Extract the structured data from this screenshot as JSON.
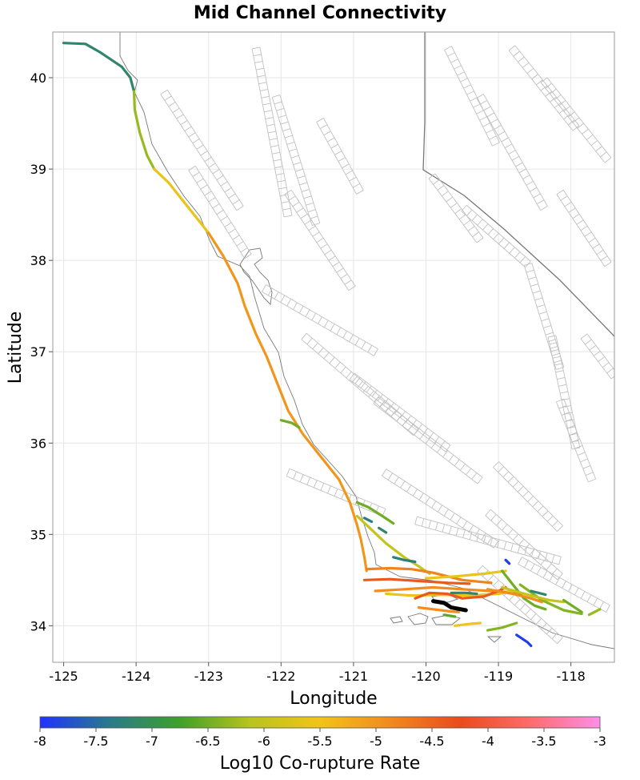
{
  "title": "Mid Channel Connectivity",
  "xlabel": "Longitude",
  "ylabel": "Latitude",
  "colorbar_label": "Log10 Co-rupture Rate",
  "x_ticks": [
    "-125",
    "-124",
    "-123",
    "-122",
    "-121",
    "-120",
    "-119",
    "-118"
  ],
  "y_ticks": [
    "34",
    "35",
    "36",
    "37",
    "38",
    "39",
    "40"
  ],
  "colorbar_ticks": [
    "-8",
    "-7.5",
    "-7",
    "-6.5",
    "-6",
    "-5.5",
    "-5",
    "-4.5",
    "-4",
    "-3.5",
    "-3"
  ],
  "colors": {
    "scale": [
      "#1f33ff",
      "#2a7a8a",
      "#3fa02a",
      "#b8c41c",
      "#f2c418",
      "#f28a1c",
      "#ea4a1c",
      "#ff6b6b",
      "#ff8ee8"
    ],
    "grid": "#e6e6e6",
    "fault_outline": "#c0c0c0",
    "coast": "#777777",
    "target_section": "#000000"
  },
  "chart_data": {
    "type": "map",
    "xlim": [
      -125.15,
      -117.4
    ],
    "ylim": [
      33.6,
      40.5
    ],
    "colorbar_range": [
      -8,
      -3
    ],
    "target_section": [
      [
        -119.9,
        34.27
      ],
      [
        -119.75,
        34.25
      ],
      [
        -119.65,
        34.2
      ],
      [
        -119.45,
        34.17
      ]
    ],
    "ruptures": [
      {
        "name": "north-coast-bluegreen",
        "rate": -7.2,
        "points": [
          [
            -125.0,
            40.38
          ],
          [
            -124.7,
            40.37
          ],
          [
            -124.5,
            40.28
          ],
          [
            -124.2,
            40.12
          ],
          [
            -124.08,
            40.0
          ],
          [
            -124.03,
            39.85
          ]
        ]
      },
      {
        "name": "north-coast-green",
        "rate": -6.3,
        "points": [
          [
            -124.03,
            39.85
          ],
          [
            -124.02,
            39.65
          ],
          [
            -123.95,
            39.4
          ],
          [
            -123.85,
            39.15
          ],
          [
            -123.75,
            39.0
          ]
        ]
      },
      {
        "name": "north-coast-yellow",
        "rate": -5.6,
        "points": [
          [
            -123.75,
            39.0
          ],
          [
            -123.55,
            38.85
          ],
          [
            -123.35,
            38.65
          ],
          [
            -123.2,
            38.5
          ],
          [
            -123.0,
            38.3
          ]
        ]
      },
      {
        "name": "san-andreas-main",
        "rate": -5.0,
        "points": [
          [
            -123.0,
            38.3
          ],
          [
            -122.8,
            38.05
          ],
          [
            -122.6,
            37.75
          ],
          [
            -122.5,
            37.5
          ],
          [
            -122.35,
            37.2
          ],
          [
            -122.2,
            36.95
          ],
          [
            -122.05,
            36.65
          ],
          [
            -121.9,
            36.35
          ],
          [
            -121.7,
            36.1
          ],
          [
            -121.45,
            35.85
          ],
          [
            -121.2,
            35.6
          ],
          [
            -121.05,
            35.35
          ],
          [
            -120.95,
            35.1
          ],
          [
            -120.9,
            34.95
          ],
          [
            -120.85,
            34.75
          ],
          [
            -120.82,
            34.6
          ]
        ]
      },
      {
        "name": "big-sur-offshore",
        "rate": -6.5,
        "points": [
          [
            -122.0,
            36.25
          ],
          [
            -121.85,
            36.22
          ],
          [
            -121.75,
            36.17
          ]
        ]
      },
      {
        "name": "hosgri-green",
        "rate": -6.5,
        "points": [
          [
            -120.95,
            35.35
          ],
          [
            -120.8,
            35.3
          ],
          [
            -120.6,
            35.2
          ],
          [
            -120.45,
            35.12
          ]
        ]
      },
      {
        "name": "hosgri-branch",
        "rate": -6.0,
        "points": [
          [
            -120.95,
            35.2
          ],
          [
            -120.75,
            35.05
          ],
          [
            -120.55,
            34.9
          ],
          [
            -120.3,
            34.75
          ],
          [
            -120.1,
            34.65
          ],
          [
            -119.95,
            34.57
          ]
        ]
      },
      {
        "name": "bluegreen-small-a",
        "rate": -7.3,
        "points": [
          [
            -120.85,
            35.18
          ],
          [
            -120.75,
            35.14
          ]
        ]
      },
      {
        "name": "bluegreen-small-b",
        "rate": -7.3,
        "points": [
          [
            -120.45,
            34.75
          ],
          [
            -120.3,
            34.72
          ],
          [
            -120.15,
            34.7
          ]
        ]
      },
      {
        "name": "mid-channel-orange-a",
        "rate": -4.8,
        "points": [
          [
            -120.82,
            34.62
          ],
          [
            -120.5,
            34.63
          ],
          [
            -120.2,
            34.62
          ],
          [
            -119.9,
            34.58
          ],
          [
            -119.5,
            34.5
          ],
          [
            -119.1,
            34.47
          ]
        ]
      },
      {
        "name": "mid-channel-yellow-a",
        "rate": -5.6,
        "points": [
          [
            -120.0,
            34.52
          ],
          [
            -119.6,
            34.54
          ],
          [
            -119.2,
            34.57
          ],
          [
            -118.9,
            34.6
          ]
        ]
      },
      {
        "name": "mid-channel-redorange",
        "rate": -4.4,
        "points": [
          [
            -120.85,
            34.5
          ],
          [
            -120.5,
            34.51
          ],
          [
            -120.1,
            34.49
          ],
          [
            -119.7,
            34.47
          ],
          [
            -119.4,
            34.46
          ]
        ]
      },
      {
        "name": "mid-channel-orange-b",
        "rate": -4.9,
        "points": [
          [
            -120.7,
            34.38
          ],
          [
            -120.3,
            34.4
          ],
          [
            -119.9,
            34.42
          ],
          [
            -119.5,
            34.4
          ],
          [
            -119.1,
            34.38
          ],
          [
            -118.7,
            34.36
          ]
        ]
      },
      {
        "name": "mid-channel-yellow-b",
        "rate": -5.6,
        "points": [
          [
            -120.55,
            34.35
          ],
          [
            -120.2,
            34.33
          ],
          [
            -119.8,
            34.34
          ],
          [
            -119.4,
            34.33
          ],
          [
            -119.0,
            34.35
          ],
          [
            -118.8,
            34.38
          ]
        ]
      },
      {
        "name": "channel-redorange-south",
        "rate": -4.4,
        "points": [
          [
            -120.15,
            34.3
          ],
          [
            -119.95,
            34.36
          ],
          [
            -119.7,
            34.35
          ],
          [
            -119.5,
            34.3
          ],
          [
            -119.2,
            34.32
          ],
          [
            -119.0,
            34.38
          ],
          [
            -118.9,
            34.42
          ]
        ]
      },
      {
        "name": "channel-orange-low",
        "rate": -4.9,
        "points": [
          [
            -120.1,
            34.2
          ],
          [
            -119.9,
            34.18
          ],
          [
            -119.7,
            34.16
          ],
          [
            -119.55,
            34.15
          ]
        ]
      },
      {
        "name": "ventura-green-a",
        "rate": -6.5,
        "points": [
          [
            -118.95,
            34.6
          ],
          [
            -118.8,
            34.45
          ],
          [
            -118.65,
            34.3
          ],
          [
            -118.5,
            34.22
          ],
          [
            -118.35,
            34.18
          ]
        ]
      },
      {
        "name": "ventura-green-b",
        "rate": -6.4,
        "points": [
          [
            -118.7,
            34.45
          ],
          [
            -118.4,
            34.28
          ],
          [
            -118.1,
            34.17
          ],
          [
            -117.85,
            34.13
          ]
        ]
      },
      {
        "name": "ventura-yellowgreen",
        "rate": -6.0,
        "points": [
          [
            -118.95,
            34.42
          ],
          [
            -118.6,
            34.34
          ],
          [
            -118.3,
            34.28
          ],
          [
            -118.1,
            34.26
          ]
        ]
      },
      {
        "name": "ventura-orange",
        "rate": -4.9,
        "points": [
          [
            -119.15,
            34.4
          ],
          [
            -118.8,
            34.35
          ],
          [
            -118.55,
            34.3
          ],
          [
            -118.4,
            34.26
          ]
        ]
      },
      {
        "name": "ventura-bluegreen",
        "rate": -7.2,
        "points": [
          [
            -118.55,
            34.38
          ],
          [
            -118.35,
            34.34
          ]
        ]
      },
      {
        "name": "san-gabriel-green",
        "rate": -6.5,
        "points": [
          [
            -118.1,
            34.28
          ],
          [
            -117.85,
            34.15
          ]
        ]
      },
      {
        "name": "east-green-tail",
        "rate": -6.3,
        "points": [
          [
            -117.75,
            34.12
          ],
          [
            -117.6,
            34.18
          ]
        ]
      },
      {
        "name": "malibu-green",
        "rate": -6.4,
        "points": [
          [
            -119.15,
            33.95
          ],
          [
            -118.95,
            33.98
          ],
          [
            -118.75,
            34.03
          ]
        ]
      },
      {
        "name": "island-yellow",
        "rate": -5.5,
        "points": [
          [
            -119.6,
            34.0
          ],
          [
            -119.4,
            34.02
          ],
          [
            -119.25,
            34.03
          ]
        ]
      },
      {
        "name": "island-green",
        "rate": -6.6,
        "points": [
          [
            -119.75,
            34.12
          ],
          [
            -119.6,
            34.1
          ]
        ]
      },
      {
        "name": "blue-north-small",
        "rate": -7.9,
        "points": [
          [
            -118.9,
            34.72
          ],
          [
            -118.85,
            34.68
          ]
        ]
      },
      {
        "name": "blue-south-small",
        "rate": -7.9,
        "points": [
          [
            -118.75,
            33.9
          ],
          [
            -118.6,
            33.82
          ],
          [
            -118.55,
            33.78
          ]
        ]
      },
      {
        "name": "bluegreen-east",
        "rate": -7.2,
        "points": [
          [
            -119.65,
            34.36
          ],
          [
            -119.45,
            34.36
          ],
          [
            -119.3,
            34.35
          ]
        ]
      },
      {
        "name": "bluegreen-west",
        "rate": -7.2,
        "points": [
          [
            -120.65,
            35.07
          ],
          [
            -120.55,
            35.02
          ]
        ]
      }
    ]
  }
}
